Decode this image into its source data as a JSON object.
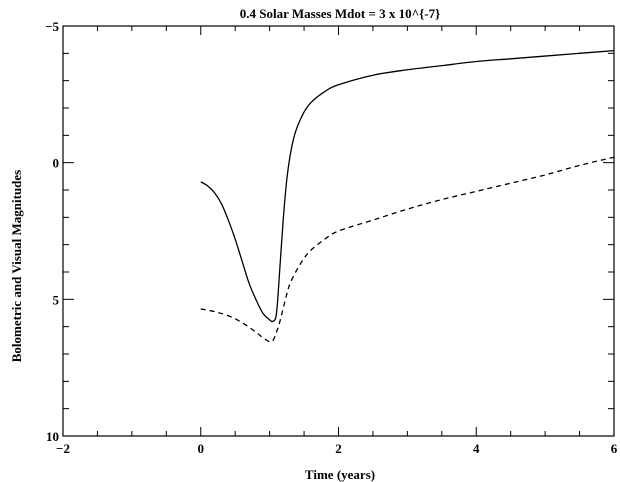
{
  "chart_data": {
    "type": "line",
    "title": "0.4 Solar Masses  Mdot = 3 x 10^{-7}",
    "xlabel": "Time (years)",
    "ylabel": "Bolometric and Visual Magnitudes",
    "xlim": [
      -2,
      6
    ],
    "ylim": [
      10,
      -5
    ],
    "y_axis_inverted": true,
    "x_ticks": [
      -2,
      0,
      2,
      4,
      6
    ],
    "x_tick_labels": [
      "−2",
      "0",
      "2",
      "4",
      "6"
    ],
    "y_ticks": [
      -5,
      0,
      5,
      10
    ],
    "y_tick_labels": [
      "−5",
      "0",
      "5",
      "10"
    ],
    "grid": false,
    "series": [
      {
        "style": "solid",
        "color": "#000000",
        "x": [
          0.0,
          0.1,
          0.2,
          0.3,
          0.4,
          0.5,
          0.6,
          0.7,
          0.8,
          0.9,
          1.0,
          1.05,
          1.1,
          1.15,
          1.2,
          1.25,
          1.3,
          1.35,
          1.4,
          1.5,
          1.6,
          1.8,
          2.0,
          2.5,
          3.0,
          3.5,
          4.0,
          4.5,
          5.0,
          5.5,
          6.0
        ],
        "y": [
          0.7,
          0.85,
          1.1,
          1.5,
          2.1,
          2.8,
          3.6,
          4.4,
          5.0,
          5.5,
          5.75,
          5.8,
          5.5,
          3.8,
          2.0,
          0.6,
          -0.3,
          -0.9,
          -1.3,
          -1.85,
          -2.2,
          -2.6,
          -2.85,
          -3.2,
          -3.4,
          -3.55,
          -3.7,
          -3.8,
          -3.9,
          -4.0,
          -4.1
        ]
      },
      {
        "style": "dashed",
        "color": "#000000",
        "x": [
          0.0,
          0.2,
          0.4,
          0.6,
          0.8,
          0.9,
          1.0,
          1.05,
          1.1,
          1.15,
          1.2,
          1.25,
          1.3,
          1.4,
          1.5,
          1.6,
          1.8,
          2.0,
          2.5,
          3.0,
          3.5,
          4.0,
          4.5,
          5.0,
          5.5,
          6.0
        ],
        "y": [
          5.35,
          5.45,
          5.6,
          5.85,
          6.2,
          6.4,
          6.55,
          6.5,
          6.2,
          5.8,
          5.3,
          4.8,
          4.4,
          3.9,
          3.5,
          3.2,
          2.8,
          2.5,
          2.1,
          1.7,
          1.35,
          1.05,
          0.75,
          0.45,
          0.1,
          -0.2
        ]
      }
    ]
  }
}
